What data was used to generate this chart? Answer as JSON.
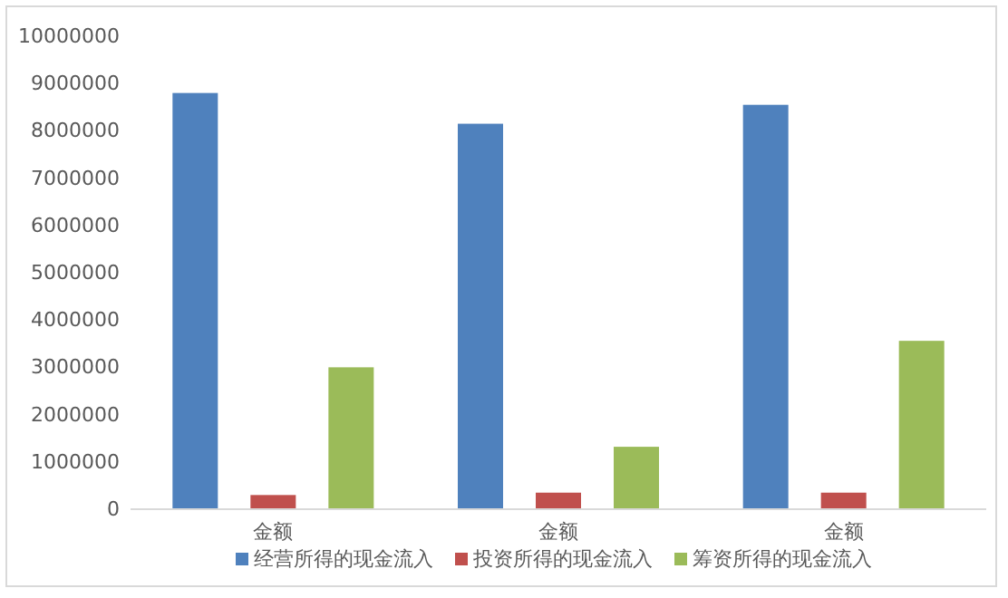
{
  "chart_data": {
    "type": "bar",
    "categories": [
      "金额",
      "金额",
      "金额"
    ],
    "series": [
      {
        "name": "经营所得的现金流入",
        "color": "#4f81bd",
        "values": [
          8800000,
          8150000,
          8550000
        ]
      },
      {
        "name": "投资所得的现金流入",
        "color": "#c0504d",
        "values": [
          300000,
          350000,
          350000
        ]
      },
      {
        "name": "筹资所得的现金流入",
        "color": "#9bbb59",
        "values": [
          3000000,
          1320000,
          3560000
        ]
      }
    ],
    "ylim": [
      0,
      10000000
    ],
    "yticks": [
      0,
      1000000,
      2000000,
      3000000,
      4000000,
      5000000,
      6000000,
      7000000,
      8000000,
      9000000,
      10000000
    ],
    "grid": false,
    "legend": "bottom"
  }
}
